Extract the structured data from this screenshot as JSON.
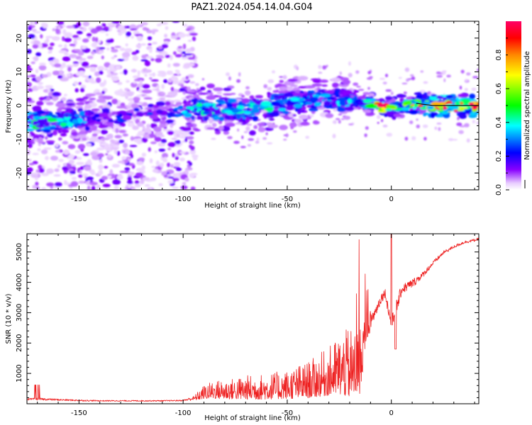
{
  "title": "PAZ1.2024.054.14.04.G04",
  "chart_data": [
    {
      "type": "heatmap",
      "xlabel": "Height of straight line (km)",
      "ylabel": "Frequency (Hz)",
      "xlim": [
        -175,
        42
      ],
      "ylim": [
        -25,
        25
      ],
      "xticks": [
        -150,
        -100,
        -50,
        0
      ],
      "yticks": [
        -20,
        -10,
        0,
        10,
        20
      ],
      "grid": false,
      "ridge": {
        "x": [
          -172,
          -160,
          -150,
          -140,
          -130,
          -120,
          -110,
          -100,
          -90,
          -80,
          -70,
          -60,
          -50,
          -40,
          -30,
          -20,
          -10,
          -5,
          0,
          10,
          20,
          30,
          42
        ],
        "freq": [
          -5,
          -4.5,
          -4,
          -3.5,
          -3,
          -2.5,
          -2,
          -1.5,
          -1,
          -1.2,
          -1.5,
          -0.5,
          0.5,
          1.5,
          2,
          1.5,
          0.5,
          -0.5,
          -1,
          0.8,
          0,
          0,
          0
        ],
        "amplitude": [
          0.4,
          0.35,
          0.3,
          0.2,
          0.2,
          0.2,
          0.2,
          0.3,
          0.35,
          0.35,
          0.35,
          0.35,
          0.3,
          0.3,
          0.3,
          0.3,
          0.4,
          0.9,
          0.45,
          0.6,
          0.9,
          0.9,
          0.85
        ]
      },
      "colorbar": {
        "label": "Normalized spectral amplitude",
        "range": [
          0,
          1
        ],
        "ticks": [
          0.0,
          0.2,
          0.4,
          0.6,
          0.8
        ],
        "colormap": [
          "#ffffff",
          "#8800ff",
          "#0000ff",
          "#00ffff",
          "#00ff00",
          "#ffff00",
          "#ff8800",
          "#ff0000",
          "#ff0066"
        ]
      }
    },
    {
      "type": "line",
      "xlabel": "Height of straight line (km)",
      "ylabel": "SNR (10 * v/v)",
      "xlim": [
        -175,
        42
      ],
      "ylim": [
        0,
        5600
      ],
      "xticks": [
        -150,
        -100,
        -50,
        0
      ],
      "yticks": [
        1000,
        2000,
        3000,
        4000,
        5000
      ],
      "grid": false,
      "color": "#ee2222",
      "envelope": {
        "x": [
          -175,
          -170,
          -160,
          -150,
          -140,
          -130,
          -120,
          -110,
          -100,
          -95,
          -90,
          -85,
          -80,
          -75,
          -70,
          -60,
          -50,
          -45,
          -40,
          -35,
          -30,
          -25,
          -20,
          -15,
          -12,
          -10,
          -8,
          -5,
          -3,
          0,
          3,
          5,
          10,
          15,
          20,
          25,
          30,
          35,
          42
        ],
        "base": [
          130,
          140,
          120,
          100,
          90,
          90,
          90,
          90,
          100,
          150,
          300,
          350,
          350,
          360,
          380,
          400,
          450,
          500,
          550,
          650,
          750,
          900,
          900,
          1000,
          2400,
          2600,
          2900,
          3400,
          3600,
          2500,
          3200,
          3700,
          3900,
          4200,
          4600,
          4950,
          5150,
          5300,
          5400
        ],
        "amp": [
          60,
          80,
          60,
          50,
          40,
          40,
          40,
          40,
          40,
          150,
          450,
          600,
          650,
          700,
          800,
          850,
          950,
          1100,
          1200,
          1400,
          1600,
          2000,
          2300,
          2300,
          900,
          700,
          400,
          350,
          300,
          500,
          500,
          350,
          300,
          200,
          150,
          120,
          100,
          100,
          90
        ]
      }
    }
  ]
}
